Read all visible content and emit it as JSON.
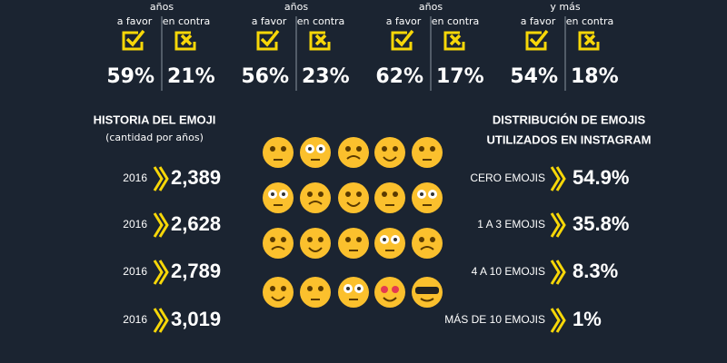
{
  "age_groups": [
    {
      "sublabel": "años",
      "favor_label": "a favor",
      "against_label": "en contra",
      "favor": "59%",
      "against": "21%"
    },
    {
      "sublabel": "años",
      "favor_label": "a favor",
      "against_label": "en contra",
      "favor": "56%",
      "against": "23%"
    },
    {
      "sublabel": "años",
      "favor_label": "a favor",
      "against_label": "en contra",
      "favor": "62%",
      "against": "17%"
    },
    {
      "sublabel": "y más",
      "favor_label": "a favor",
      "against_label": "en contra",
      "favor": "54%",
      "against": "18%"
    }
  ],
  "history": {
    "title": "HISTORIA DEL EMOJI",
    "subtitle": "(cantidad por años)",
    "rows": [
      {
        "year": "2016",
        "value": "2,389"
      },
      {
        "year": "2016",
        "value": "2,628"
      },
      {
        "year": "2016",
        "value": "2,789"
      },
      {
        "year": "2016",
        "value": "3,019"
      }
    ]
  },
  "distribution": {
    "title_lines": [
      "DISTRIBUCIÓN DE EMOJIS",
      "UTILIZADOS EN INSTAGRAM"
    ],
    "rows": [
      {
        "label": "CERO EMOJIS",
        "value": "54.9%"
      },
      {
        "label": "1 A 3 EMOJIS",
        "value": "35.8%"
      },
      {
        "label": "4 A 10 EMOJIS",
        "value": "8.3%"
      },
      {
        "label": "MÁS DE 10 EMOJIS",
        "value": "1%"
      }
    ]
  }
}
